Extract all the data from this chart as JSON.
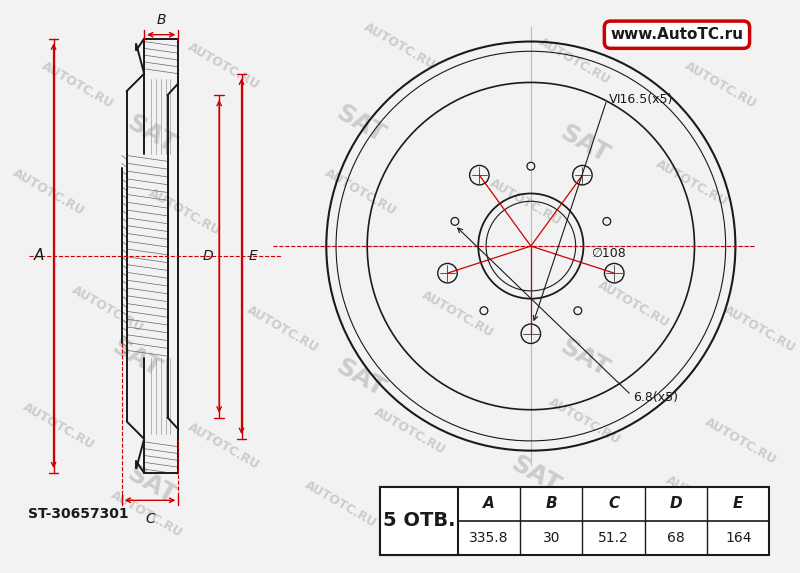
{
  "bg_color": "#f2f2f2",
  "line_color": "#1a1a1a",
  "red_color": "#cc0000",
  "watermark_color": "#cccccc",
  "part_number": "ST-30657301",
  "holes_label": "5 ОТВ.",
  "bolt_hole_label": "Ⅵ16.5(x5)",
  "center_hole_label": "∅108",
  "small_hole_label": "6.8(x5)",
  "website": "www.AutoTC.ru",
  "col_headers": [
    "A",
    "B",
    "C",
    "D",
    "E"
  ],
  "table_values": [
    "335.8",
    "30",
    "51.2",
    "68",
    "164"
  ]
}
